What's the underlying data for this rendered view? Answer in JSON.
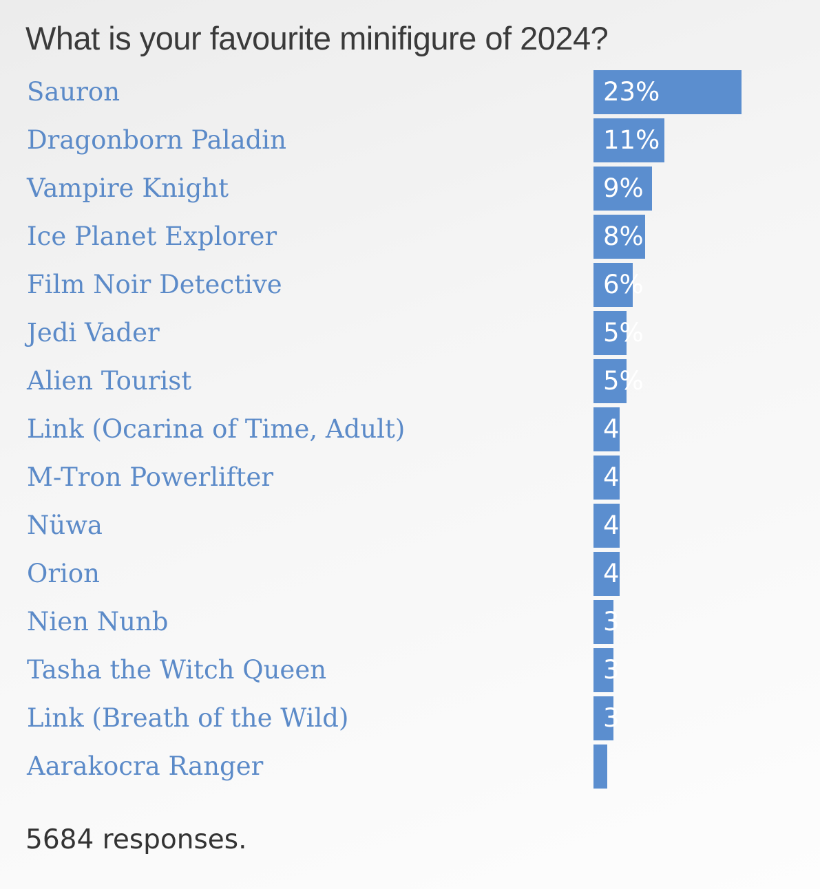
{
  "poll": {
    "question": "What is your favourite minifigure of 2024?",
    "responses_text": "5684 responses."
  },
  "colors": {
    "bar": "#5b8ecf",
    "label": "#5b8ac8",
    "title": "#3a3a3a"
  },
  "chart_data": {
    "type": "bar",
    "orientation": "horizontal",
    "title": "What is your favourite minifigure of 2024?",
    "categories": [
      "Sauron",
      "Dragonborn Paladin",
      "Vampire Knight",
      "Ice Planet Explorer",
      "Film Noir Detective",
      "Jedi Vader",
      "Alien Tourist",
      "Link (Ocarina of Time, Adult)",
      "M-Tron Powerlifter",
      "Nüwa",
      "Orion",
      "Nien Nunb",
      "Tasha the Witch Queen",
      "Link (Breath of the Wild)",
      "Aarakocra Ranger"
    ],
    "values": [
      23,
      11,
      9,
      8,
      6,
      5,
      5,
      4,
      4,
      4,
      4,
      3,
      3,
      3,
      2
    ],
    "data_labels": [
      "23%",
      "11%",
      "9%",
      "8%",
      "6%",
      "5%",
      "5%",
      "4",
      "4",
      "4",
      "4",
      "3",
      "3",
      "3",
      ""
    ],
    "unit": "%"
  }
}
